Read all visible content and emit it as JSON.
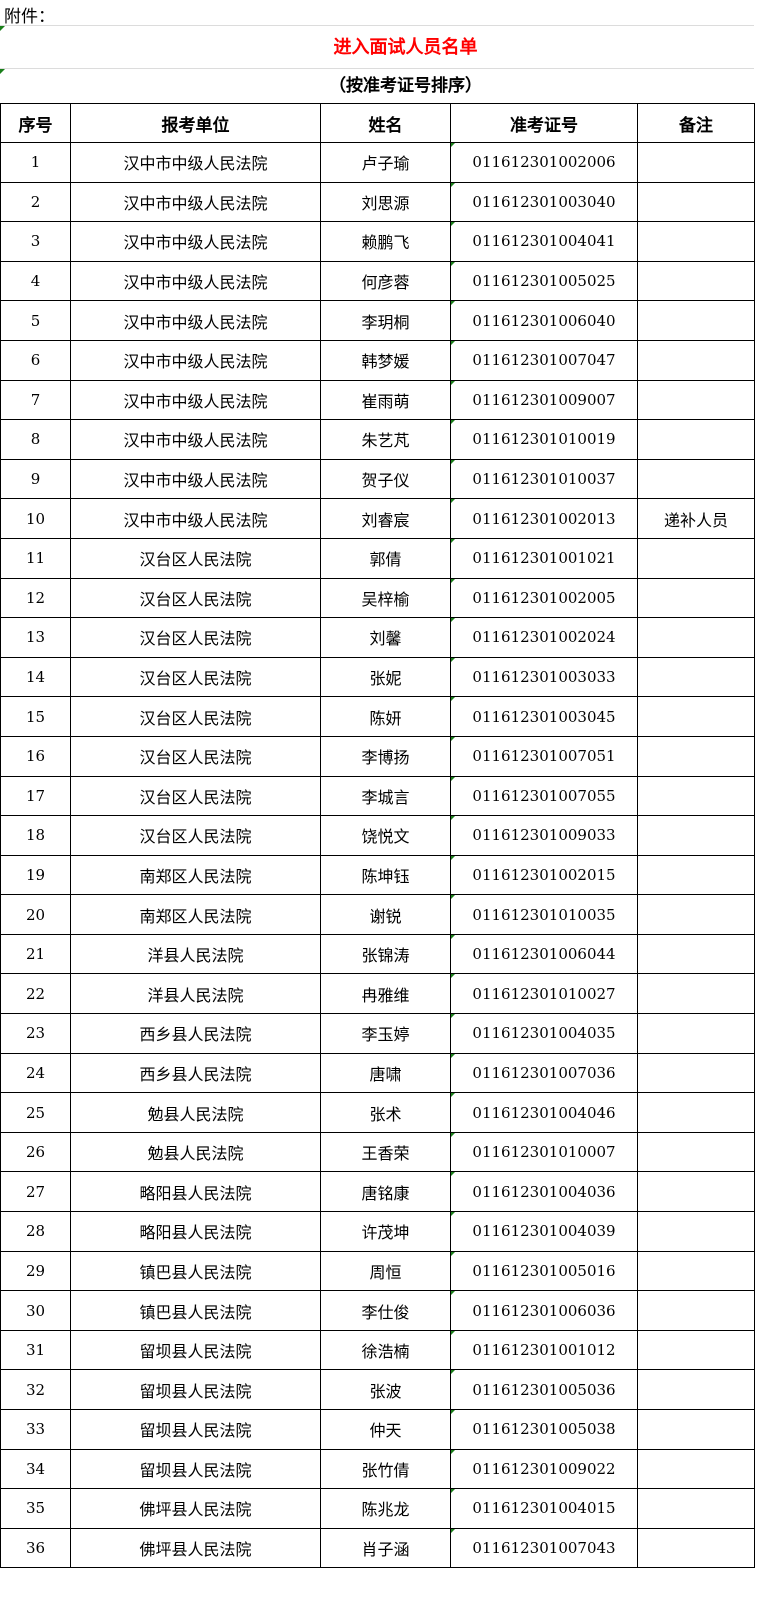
{
  "attachment_label": "附件：",
  "title": "进入面试人员名单",
  "subtitle": "（按准考证号排序）",
  "table": {
    "headers": [
      "序号",
      "报考单位",
      "姓名",
      "准考证号",
      "备注"
    ],
    "rows": [
      [
        "1",
        "汉中市中级人民法院",
        "卢子瑜",
        "011612301002006",
        ""
      ],
      [
        "2",
        "汉中市中级人民法院",
        "刘思源",
        "011612301003040",
        ""
      ],
      [
        "3",
        "汉中市中级人民法院",
        "赖鹏飞",
        "011612301004041",
        ""
      ],
      [
        "4",
        "汉中市中级人民法院",
        "何彦蓉",
        "011612301005025",
        ""
      ],
      [
        "5",
        "汉中市中级人民法院",
        "李玥桐",
        "011612301006040",
        ""
      ],
      [
        "6",
        "汉中市中级人民法院",
        "韩梦媛",
        "011612301007047",
        ""
      ],
      [
        "7",
        "汉中市中级人民法院",
        "崔雨萌",
        "011612301009007",
        ""
      ],
      [
        "8",
        "汉中市中级人民法院",
        "朱艺芃",
        "011612301010019",
        ""
      ],
      [
        "9",
        "汉中市中级人民法院",
        "贺子仪",
        "011612301010037",
        ""
      ],
      [
        "10",
        "汉中市中级人民法院",
        "刘睿宸",
        "011612301002013",
        "递补人员"
      ],
      [
        "11",
        "汉台区人民法院",
        "郭倩",
        "011612301001021",
        ""
      ],
      [
        "12",
        "汉台区人民法院",
        "吴梓榆",
        "011612301002005",
        ""
      ],
      [
        "13",
        "汉台区人民法院",
        "刘馨",
        "011612301002024",
        ""
      ],
      [
        "14",
        "汉台区人民法院",
        "张妮",
        "011612301003033",
        ""
      ],
      [
        "15",
        "汉台区人民法院",
        "陈妍",
        "011612301003045",
        ""
      ],
      [
        "16",
        "汉台区人民法院",
        "李博扬",
        "011612301007051",
        ""
      ],
      [
        "17",
        "汉台区人民法院",
        "李城言",
        "011612301007055",
        ""
      ],
      [
        "18",
        "汉台区人民法院",
        "饶悦文",
        "011612301009033",
        ""
      ],
      [
        "19",
        "南郑区人民法院",
        "陈坤钰",
        "011612301002015",
        ""
      ],
      [
        "20",
        "南郑区人民法院",
        "谢锐",
        "011612301010035",
        ""
      ],
      [
        "21",
        "洋县人民法院",
        "张锦涛",
        "011612301006044",
        ""
      ],
      [
        "22",
        "洋县人民法院",
        "冉雅维",
        "011612301010027",
        ""
      ],
      [
        "23",
        "西乡县人民法院",
        "李玉婷",
        "011612301004035",
        ""
      ],
      [
        "24",
        "西乡县人民法院",
        "唐啸",
        "011612301007036",
        ""
      ],
      [
        "25",
        "勉县人民法院",
        "张术",
        "011612301004046",
        ""
      ],
      [
        "26",
        "勉县人民法院",
        "王香荣",
        "011612301010007",
        ""
      ],
      [
        "27",
        "略阳县人民法院",
        "唐铭康",
        "011612301004036",
        ""
      ],
      [
        "28",
        "略阳县人民法院",
        "许茂坤",
        "011612301004039",
        ""
      ],
      [
        "29",
        "镇巴县人民法院",
        "周恒",
        "011612301005016",
        ""
      ],
      [
        "30",
        "镇巴县人民法院",
        "李仕俊",
        "011612301006036",
        ""
      ],
      [
        "31",
        "留坝县人民法院",
        "徐浩楠",
        "011612301001012",
        ""
      ],
      [
        "32",
        "留坝县人民法院",
        "张波",
        "011612301005036",
        ""
      ],
      [
        "33",
        "留坝县人民法院",
        "仲天",
        "011612301005038",
        ""
      ],
      [
        "34",
        "留坝县人民法院",
        "张竹倩",
        "011612301009022",
        ""
      ],
      [
        "35",
        "佛坪县人民法院",
        "陈兆龙",
        "011612301004015",
        ""
      ],
      [
        "36",
        "佛坪县人民法院",
        "肖子涵",
        "011612301007043",
        ""
      ]
    ]
  },
  "colors": {
    "title": "#ff0000",
    "cell_marker": "#1a7f1a"
  }
}
